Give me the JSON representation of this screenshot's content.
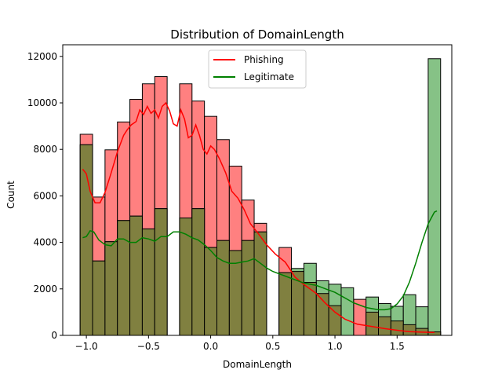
{
  "chart_data": {
    "type": "histogram",
    "title": "Distribution of DomainLength",
    "xlabel": "DomainLength",
    "ylabel": "Count",
    "xlim": [
      -1.19,
      1.94
    ],
    "ylim": [
      0,
      12500
    ],
    "x_ticks": [
      -1.0,
      -0.5,
      0.0,
      0.5,
      1.0,
      1.5
    ],
    "x_tick_labels": [
      "−1.0",
      "−0.5",
      "0.0",
      "0.5",
      "1.0",
      "1.5"
    ],
    "y_ticks": [
      0,
      2000,
      4000,
      6000,
      8000,
      10000,
      12000
    ],
    "y_tick_labels": [
      "0",
      "2000",
      "4000",
      "6000",
      "8000",
      "10000",
      "12000"
    ],
    "grid": false,
    "legend_position": "upper center",
    "bin_edges": [
      -1.05,
      -0.95,
      -0.85,
      -0.75,
      -0.65,
      -0.55,
      -0.45,
      -0.35,
      -0.25,
      -0.15,
      -0.05,
      0.05,
      0.15,
      0.25,
      0.35,
      0.45,
      0.55,
      0.65,
      0.75,
      0.85,
      0.95,
      1.05,
      1.15,
      1.25,
      1.35,
      1.45,
      1.55,
      1.65,
      1.75,
      1.85
    ],
    "series": [
      {
        "name": "Phishing",
        "color": "#ff0000",
        "bar_fill": "#ff8080",
        "counts": [
          8650,
          5950,
          7980,
          9180,
          10150,
          10820,
          11130,
          0,
          10820,
          10080,
          9420,
          8420,
          7280,
          5820,
          4820,
          0,
          3780,
          2750,
          2280,
          1800,
          1280,
          0,
          1550,
          1000,
          800,
          620,
          460,
          300,
          150
        ],
        "kde": [
          [
            -1.03,
            7150
          ],
          [
            -1.0,
            6950
          ],
          [
            -0.97,
            6200
          ],
          [
            -0.93,
            5700
          ],
          [
            -0.89,
            5700
          ],
          [
            -0.85,
            6150
          ],
          [
            -0.8,
            7000
          ],
          [
            -0.75,
            7900
          ],
          [
            -0.7,
            8600
          ],
          [
            -0.67,
            8850
          ],
          [
            -0.64,
            9050
          ],
          [
            -0.6,
            9200
          ],
          [
            -0.57,
            9700
          ],
          [
            -0.54,
            9500
          ],
          [
            -0.51,
            9850
          ],
          [
            -0.48,
            9550
          ],
          [
            -0.45,
            9700
          ],
          [
            -0.42,
            9350
          ],
          [
            -0.39,
            9850
          ],
          [
            -0.36,
            10000
          ],
          [
            -0.33,
            9650
          ],
          [
            -0.3,
            9100
          ],
          [
            -0.27,
            9000
          ],
          [
            -0.24,
            9700
          ],
          [
            -0.21,
            9300
          ],
          [
            -0.18,
            8500
          ],
          [
            -0.15,
            8600
          ],
          [
            -0.12,
            9050
          ],
          [
            -0.09,
            8600
          ],
          [
            -0.06,
            8000
          ],
          [
            -0.03,
            7800
          ],
          [
            0.0,
            8150
          ],
          [
            0.03,
            8000
          ],
          [
            0.07,
            7600
          ],
          [
            0.12,
            7000
          ],
          [
            0.17,
            6200
          ],
          [
            0.22,
            5900
          ],
          [
            0.27,
            5400
          ],
          [
            0.32,
            4800
          ],
          [
            0.38,
            4400
          ],
          [
            0.45,
            3900
          ],
          [
            0.52,
            3500
          ],
          [
            0.6,
            3150
          ],
          [
            0.68,
            2500
          ],
          [
            0.76,
            2150
          ],
          [
            0.85,
            1800
          ],
          [
            0.92,
            1400
          ],
          [
            1.0,
            1000
          ],
          [
            1.08,
            700
          ],
          [
            1.18,
            480
          ],
          [
            1.3,
            380
          ],
          [
            1.4,
            290
          ],
          [
            1.5,
            220
          ],
          [
            1.6,
            160
          ],
          [
            1.7,
            140
          ],
          [
            1.8,
            130
          ]
        ]
      },
      {
        "name": "Legitimate",
        "color": "#008000",
        "bar_fill": "#80bf80",
        "counts": [
          8200,
          3200,
          4030,
          4940,
          5130,
          4580,
          5450,
          0,
          5050,
          5450,
          3780,
          4080,
          3650,
          4080,
          4450,
          0,
          2700,
          2880,
          3100,
          2350,
          2200,
          2050,
          0,
          1650,
          1370,
          1250,
          1750,
          1230,
          11900
        ],
        "kde": [
          [
            -1.03,
            4200
          ],
          [
            -1.0,
            4250
          ],
          [
            -0.97,
            4500
          ],
          [
            -0.94,
            4450
          ],
          [
            -0.9,
            4100
          ],
          [
            -0.85,
            3900
          ],
          [
            -0.8,
            3850
          ],
          [
            -0.75,
            4150
          ],
          [
            -0.7,
            4150
          ],
          [
            -0.65,
            4000
          ],
          [
            -0.6,
            4000
          ],
          [
            -0.55,
            4200
          ],
          [
            -0.5,
            4150
          ],
          [
            -0.45,
            4050
          ],
          [
            -0.4,
            4250
          ],
          [
            -0.35,
            4250
          ],
          [
            -0.3,
            4450
          ],
          [
            -0.25,
            4450
          ],
          [
            -0.2,
            4350
          ],
          [
            -0.15,
            4200
          ],
          [
            -0.1,
            4100
          ],
          [
            -0.05,
            3900
          ],
          [
            0.0,
            3650
          ],
          [
            0.05,
            3350
          ],
          [
            0.1,
            3200
          ],
          [
            0.15,
            3100
          ],
          [
            0.2,
            3100
          ],
          [
            0.25,
            3150
          ],
          [
            0.3,
            3200
          ],
          [
            0.35,
            3300
          ],
          [
            0.4,
            3100
          ],
          [
            0.45,
            2900
          ],
          [
            0.5,
            2750
          ],
          [
            0.55,
            2650
          ],
          [
            0.6,
            2550
          ],
          [
            0.65,
            2450
          ],
          [
            0.7,
            2350
          ],
          [
            0.75,
            2250
          ],
          [
            0.8,
            2200
          ],
          [
            0.85,
            2150
          ],
          [
            0.9,
            2050
          ],
          [
            0.95,
            1950
          ],
          [
            1.0,
            1850
          ],
          [
            1.05,
            1700
          ],
          [
            1.1,
            1550
          ],
          [
            1.15,
            1400
          ],
          [
            1.2,
            1300
          ],
          [
            1.25,
            1200
          ],
          [
            1.3,
            1150
          ],
          [
            1.35,
            1100
          ],
          [
            1.4,
            1100
          ],
          [
            1.45,
            1150
          ],
          [
            1.5,
            1350
          ],
          [
            1.55,
            1700
          ],
          [
            1.6,
            2300
          ],
          [
            1.65,
            3100
          ],
          [
            1.7,
            4000
          ],
          [
            1.75,
            4800
          ],
          [
            1.8,
            5300
          ],
          [
            1.82,
            5350
          ]
        ]
      }
    ]
  }
}
